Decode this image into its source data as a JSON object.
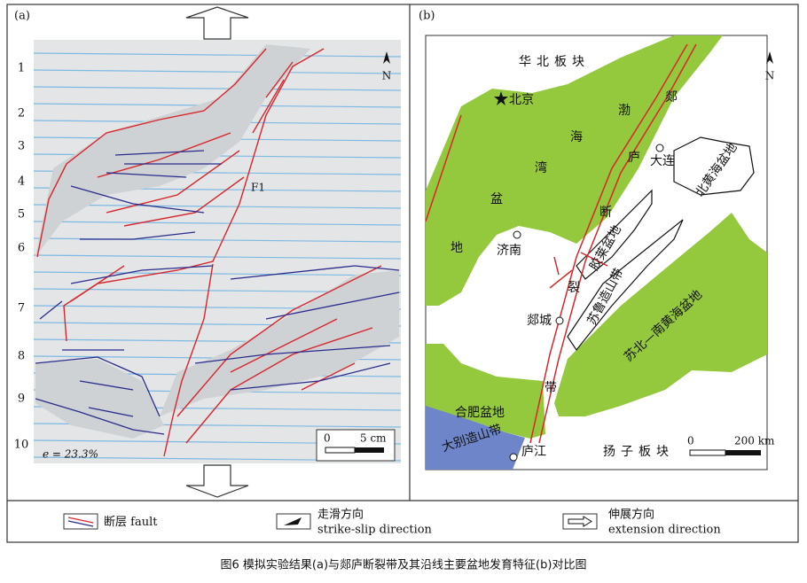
{
  "panel_a": {
    "label": "(a)",
    "row_numbers": [
      "1",
      "2",
      "3",
      "4",
      "5",
      "6",
      "7",
      "8",
      "9",
      "10"
    ],
    "north": "N",
    "fault_label": "F1",
    "strain": "e = 23.3%",
    "scale": [
      "0",
      "5 cm"
    ]
  },
  "panel_b": {
    "label": "(b)",
    "north": "N",
    "north_china_plate": "华北板块",
    "beijing": "北京",
    "bohai_bay_basin": [
      "渤",
      "海",
      "湾",
      "盆",
      "地"
    ],
    "tanlu_fault_zone": [
      "郯",
      "庐",
      "断",
      "裂",
      "带"
    ],
    "dalian": "大连",
    "north_yellow_sea_basin": "北黄海盆地",
    "jinan": "济南",
    "jiaolai_basin": "胶莱盆地",
    "sulu_orogen": "苏鲁造山带",
    "tancheng": "郯城",
    "subei_basin": "苏北—南黄海盆地",
    "hefei_basin": "合肥盆地",
    "dabie_orogen": "大别造山带",
    "lujiang": "庐江",
    "yangtze_plate": "扬子板块",
    "scale": [
      "0",
      "200 km"
    ]
  },
  "legend": [
    {
      "cn": "断层",
      "en": "fault"
    },
    {
      "cn": "走滑方向",
      "en": "strike-slip direction"
    },
    {
      "cn": "伸展方向",
      "en": "extension direction"
    }
  ],
  "caption": "图6 模拟实验结果(a)与郯庐断裂带及其沿线主要盆地发育特征(b)对比图"
}
